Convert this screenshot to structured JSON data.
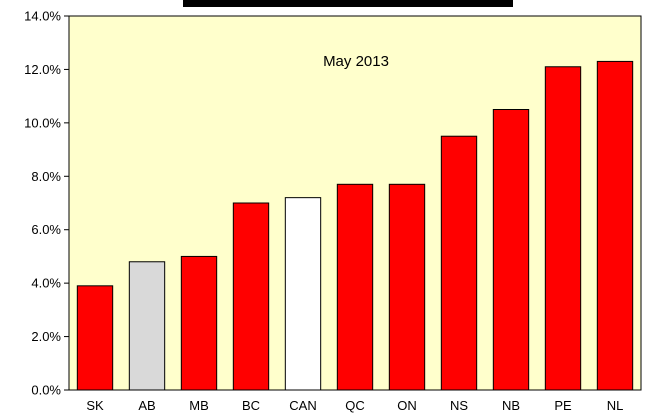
{
  "chart_data": {
    "type": "bar",
    "annotation": "May 2013",
    "categories": [
      "SK",
      "AB",
      "MB",
      "BC",
      "CAN",
      "QC",
      "ON",
      "NS",
      "NB",
      "PE",
      "NL"
    ],
    "values": [
      3.9,
      4.8,
      5.0,
      7.0,
      7.2,
      7.7,
      7.7,
      9.5,
      10.5,
      12.1,
      12.3
    ],
    "bar_colors": [
      "#ff0000",
      "#d9d9d9",
      "#ff0000",
      "#ff0000",
      "#ffffff",
      "#ff0000",
      "#ff0000",
      "#ff0000",
      "#ff0000",
      "#ff0000",
      "#ff0000"
    ],
    "y_ticks": [
      "0.0%",
      "2.0%",
      "4.0%",
      "6.0%",
      "8.0%",
      "10.0%",
      "12.0%",
      "14.0%"
    ],
    "ylim": [
      0,
      14
    ],
    "xlabel": "",
    "ylabel": "",
    "grid": false,
    "legend": "none",
    "plot_background": "#ffffcc",
    "title_box_fill": "#000000"
  }
}
